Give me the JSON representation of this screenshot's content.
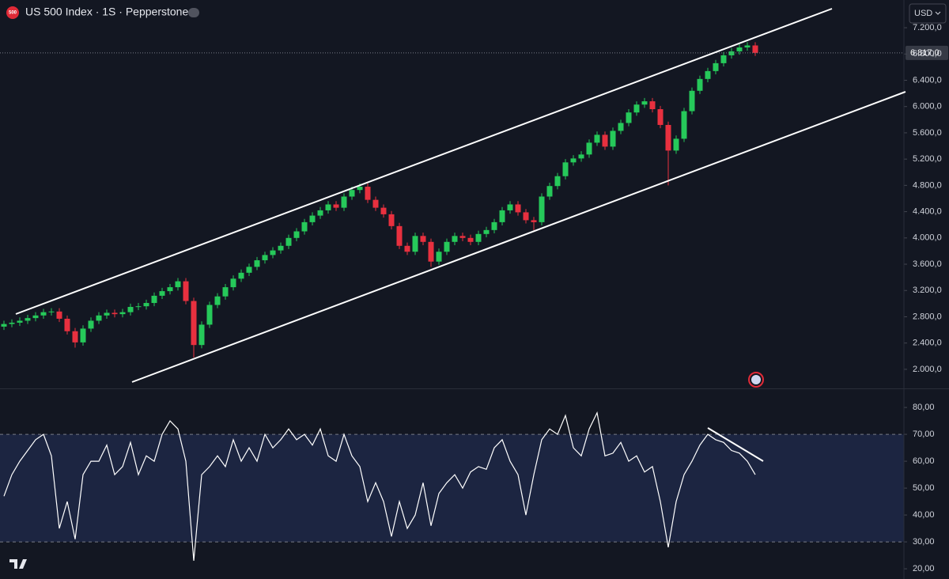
{
  "header": {
    "badge": "500",
    "title": "US 500 Index · 1S · Pepperstone",
    "currency": "USD"
  },
  "chart_data": [
    {
      "type": "candlestick",
      "up_color": "#26c95a",
      "down_color": "#e8303f",
      "open": [
        2650,
        2690,
        2710,
        2740,
        2780,
        2820,
        2870,
        2880,
        2770,
        2580,
        2410,
        2620,
        2740,
        2820,
        2860,
        2840,
        2870,
        2950,
        2960,
        3010,
        3120,
        3190,
        3250,
        3340,
        3040,
        2370,
        2680,
        2980,
        3110,
        3250,
        3380,
        3470,
        3560,
        3660,
        3740,
        3810,
        3880,
        4000,
        4100,
        4240,
        4340,
        4420,
        4510,
        4460,
        4630,
        4730,
        4780,
        4580,
        4460,
        4360,
        4180,
        3880,
        3790,
        4030,
        3940,
        3640,
        3790,
        3940,
        4030,
        4000,
        3940,
        4060,
        4120,
        4240,
        4420,
        4510,
        4390,
        4270,
        4240,
        4630,
        4790,
        4940,
        5150,
        5210,
        5270,
        5450,
        5570,
        5390,
        5630,
        5750,
        5910,
        6030,
        6080,
        5960,
        5720,
        5330,
        5510,
        5930,
        6240,
        6420,
        6540,
        6660,
        6780,
        6840,
        6900,
        6930
      ],
      "high": [
        2740,
        2760,
        2790,
        2830,
        2870,
        2920,
        2930,
        2930,
        2820,
        2630,
        2670,
        2790,
        2870,
        2910,
        2910,
        2920,
        3000,
        3010,
        3060,
        3170,
        3240,
        3300,
        3390,
        3390,
        3090,
        2730,
        3030,
        3160,
        3300,
        3430,
        3520,
        3610,
        3710,
        3790,
        3860,
        3930,
        4050,
        4150,
        4290,
        4390,
        4470,
        4560,
        4560,
        4680,
        4780,
        4830,
        4830,
        4630,
        4510,
        4410,
        4230,
        3930,
        4080,
        4080,
        3990,
        3840,
        3990,
        4080,
        4080,
        4050,
        4110,
        4170,
        4290,
        4470,
        4560,
        4560,
        4440,
        4320,
        4680,
        4840,
        4990,
        5200,
        5260,
        5320,
        5500,
        5620,
        5620,
        5680,
        5800,
        5960,
        6080,
        6130,
        6130,
        6010,
        5770,
        5560,
        5980,
        6290,
        6470,
        6590,
        6710,
        6830,
        6890,
        6950,
        6980,
        6980
      ],
      "low": [
        2600,
        2640,
        2660,
        2690,
        2730,
        2770,
        2820,
        2720,
        2530,
        2330,
        2360,
        2570,
        2690,
        2770,
        2790,
        2790,
        2820,
        2900,
        2910,
        2960,
        3070,
        3140,
        3200,
        2990,
        2180,
        2320,
        2630,
        2930,
        3060,
        3200,
        3330,
        3420,
        3510,
        3610,
        3690,
        3760,
        3830,
        3950,
        4050,
        4190,
        4290,
        4370,
        4410,
        4410,
        4580,
        4680,
        4530,
        4410,
        4310,
        4130,
        3830,
        3740,
        3740,
        3890,
        3560,
        3590,
        3740,
        3890,
        3950,
        3890,
        3890,
        4010,
        4070,
        4190,
        4370,
        4340,
        4220,
        4120,
        4190,
        4580,
        4740,
        4890,
        5100,
        5160,
        5220,
        5400,
        5340,
        5340,
        5580,
        5700,
        5860,
        5980,
        5910,
        5670,
        4800,
        5280,
        5460,
        5880,
        6190,
        6370,
        6490,
        6610,
        6730,
        6790,
        6850,
        6770
      ],
      "close": [
        2690,
        2710,
        2740,
        2780,
        2820,
        2870,
        2880,
        2770,
        2580,
        2410,
        2620,
        2740,
        2820,
        2860,
        2840,
        2870,
        2950,
        2960,
        3010,
        3120,
        3190,
        3250,
        3340,
        3040,
        2370,
        2680,
        2980,
        3110,
        3250,
        3380,
        3470,
        3560,
        3660,
        3740,
        3810,
        3880,
        4000,
        4100,
        4240,
        4340,
        4420,
        4510,
        4460,
        4630,
        4730,
        4780,
        4580,
        4460,
        4360,
        4180,
        3880,
        3790,
        4030,
        3940,
        3640,
        3790,
        3940,
        4030,
        4000,
        3940,
        4060,
        4120,
        4240,
        4420,
        4510,
        4390,
        4270,
        4240,
        4630,
        4790,
        4940,
        5150,
        5210,
        5270,
        5450,
        5570,
        5390,
        5630,
        5750,
        5910,
        6030,
        6080,
        5960,
        5720,
        5330,
        5510,
        5930,
        6240,
        6420,
        6540,
        6660,
        6780,
        6840,
        6900,
        6930,
        6817
      ],
      "last_value": {
        "value": 6817,
        "label": "6.817,0"
      },
      "ylim": [
        1710,
        7622
      ],
      "yticks": [
        {
          "value": 2000,
          "label": "2.000,0"
        },
        {
          "value": 2400,
          "label": "2.400,0"
        },
        {
          "value": 2800,
          "label": "2.800,0"
        },
        {
          "value": 3200,
          "label": "3.200,0"
        },
        {
          "value": 3600,
          "label": "3.600,0"
        },
        {
          "value": 4000,
          "label": "4.000,0"
        },
        {
          "value": 4400,
          "label": "4.400,0"
        },
        {
          "value": 4800,
          "label": "4.800,0"
        },
        {
          "value": 5200,
          "label": "5.200,0"
        },
        {
          "value": 5600,
          "label": "5.600,0"
        },
        {
          "value": 6000,
          "label": "6.000,0"
        },
        {
          "value": 6400,
          "label": "6.400,0"
        },
        {
          "value": 6800,
          "label": "6.800,0"
        },
        {
          "value": 7200,
          "label": "7.200,0"
        }
      ]
    },
    {
      "type": "line",
      "series": [
        {
          "color": "#ffffff",
          "values": [
            47,
            55,
            60,
            64,
            68,
            70,
            62,
            35,
            45,
            31,
            55,
            60,
            60,
            66,
            55,
            58,
            67,
            55,
            62,
            60,
            70,
            75,
            72,
            60,
            23,
            55,
            58,
            62,
            58,
            68,
            60,
            65,
            60,
            70,
            65,
            68,
            72,
            68,
            70,
            66,
            72,
            62,
            60,
            70,
            62,
            58,
            45,
            52,
            45,
            32,
            45,
            35,
            40,
            52,
            36,
            48,
            52,
            55,
            50,
            56,
            58,
            57,
            65,
            68,
            60,
            55,
            40,
            55,
            68,
            72,
            70,
            77,
            65,
            62,
            72,
            78,
            62,
            63,
            67,
            60,
            62,
            56,
            58,
            45,
            28,
            45,
            55,
            60,
            66,
            70,
            68,
            67,
            64,
            63,
            60,
            55
          ]
        }
      ],
      "band": [
        30,
        70
      ],
      "band_color": "#1c2541",
      "ylim": [
        16.2,
        86.8
      ],
      "yticks": [
        {
          "value": 20,
          "label": "20,00"
        },
        {
          "value": 30,
          "label": "30,00"
        },
        {
          "value": 40,
          "label": "40,00"
        },
        {
          "value": 50,
          "label": "50,00"
        },
        {
          "value": 60,
          "label": "60,00"
        },
        {
          "value": 70,
          "label": "70,00"
        },
        {
          "value": 80,
          "label": "80,00"
        }
      ]
    }
  ]
}
